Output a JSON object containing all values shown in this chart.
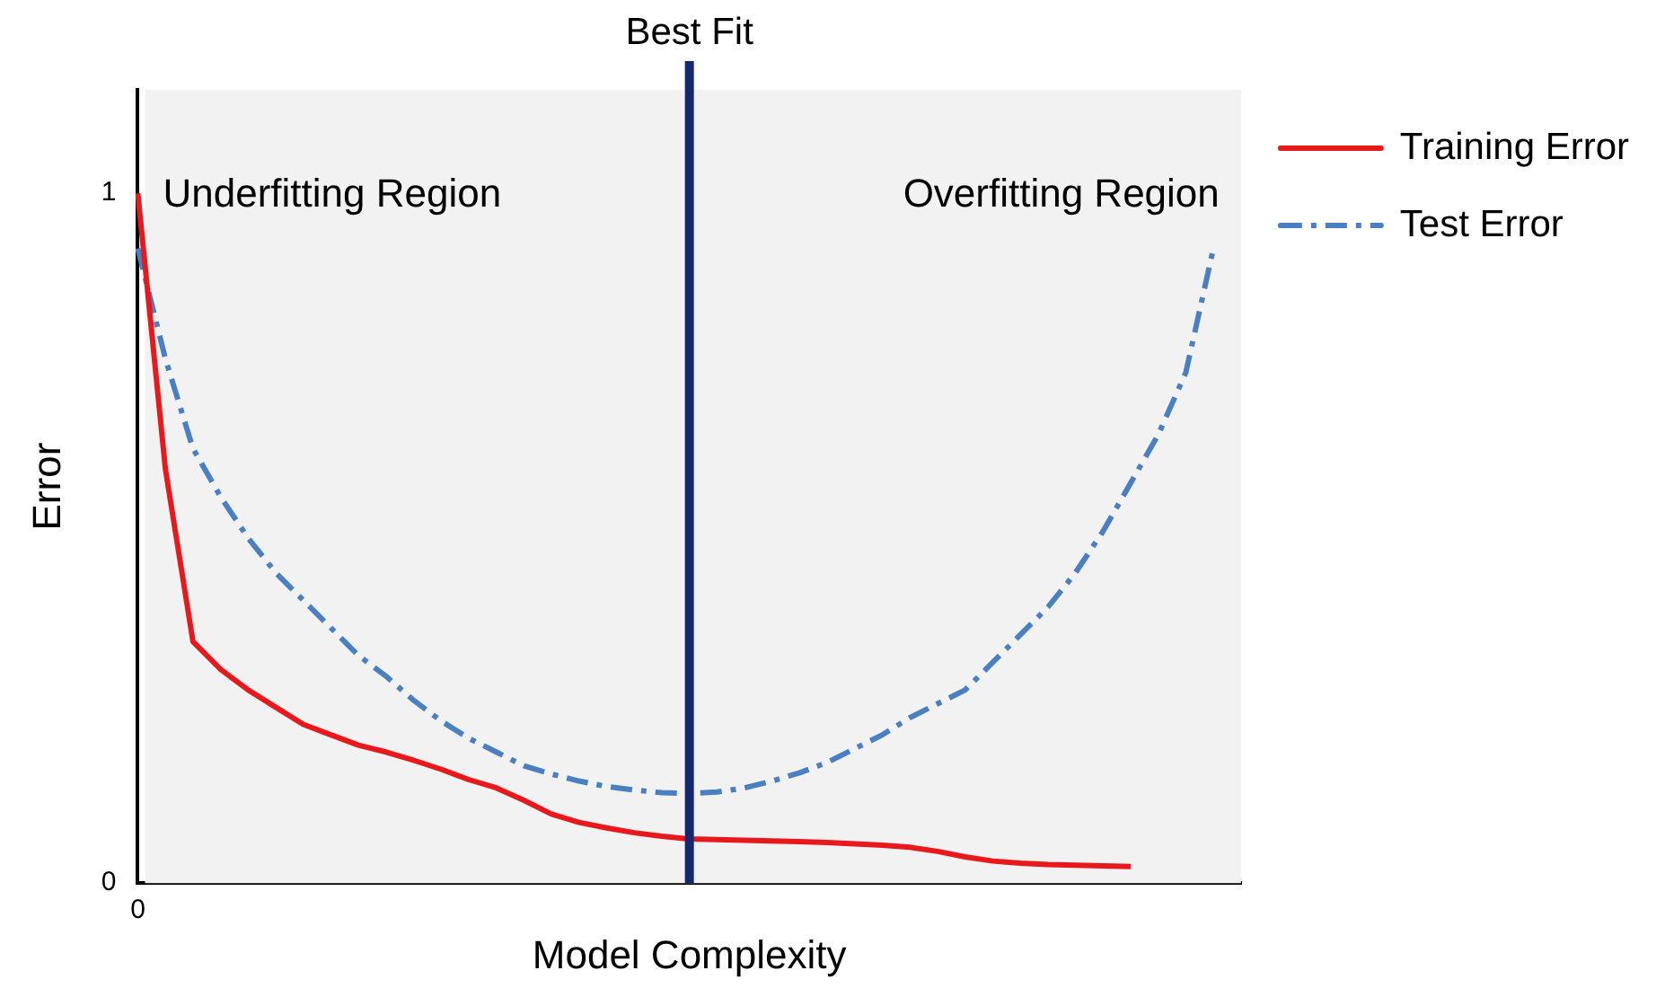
{
  "chart_data": {
    "type": "line",
    "xlabel": "Model Complexity",
    "ylabel": "Error",
    "categories": [
      null,
      null,
      null,
      null,
      null,
      null,
      null,
      null,
      null,
      null,
      null,
      null,
      null,
      null,
      null,
      null,
      null,
      null,
      null,
      null,
      null,
      null,
      null,
      null,
      null,
      null,
      null,
      null,
      null,
      null,
      null,
      null,
      null,
      null,
      null,
      null,
      null,
      null,
      null,
      null,
      null
    ],
    "ylim": [
      0,
      1.15
    ],
    "yticks": [
      0,
      1
    ],
    "legend": "top right",
    "marker": "none",
    "annotations": [
      "Best Fit",
      "Underfitting Region",
      "Overfitting Region",
      "0"
    ],
    "series": [
      {
        "name": "Training Error",
        "color": "#e8191c",
        "line_style": "solid",
        "values": [
          1.0,
          0.6,
          0.35,
          0.31,
          0.28,
          0.255,
          0.23,
          0.215,
          0.2,
          0.19,
          0.178,
          0.165,
          0.15,
          0.138,
          0.12,
          0.1,
          0.088,
          0.08,
          0.073,
          0.068,
          0.064,
          0.063,
          0.062,
          0.061,
          0.06,
          0.059,
          0.057,
          0.055,
          0.052,
          0.046,
          0.038,
          0.032,
          0.029,
          0.027,
          0.026,
          0.025,
          0.024,
          null,
          null,
          null,
          null
        ]
      },
      {
        "name": "Test Error",
        "color": "#4a7fc1",
        "line_style": "dashed",
        "values": [
          0.92,
          0.76,
          0.63,
          0.56,
          0.5,
          0.45,
          0.41,
          0.37,
          0.33,
          0.3,
          0.265,
          0.235,
          0.21,
          0.19,
          0.17,
          0.158,
          0.148,
          0.14,
          0.135,
          0.131,
          0.13,
          0.132,
          0.138,
          0.148,
          0.16,
          0.175,
          0.195,
          0.215,
          0.24,
          0.26,
          0.28,
          0.32,
          0.36,
          0.4,
          0.45,
          0.51,
          0.58,
          0.65,
          0.74,
          0.92,
          null
        ]
      }
    ]
  }
}
